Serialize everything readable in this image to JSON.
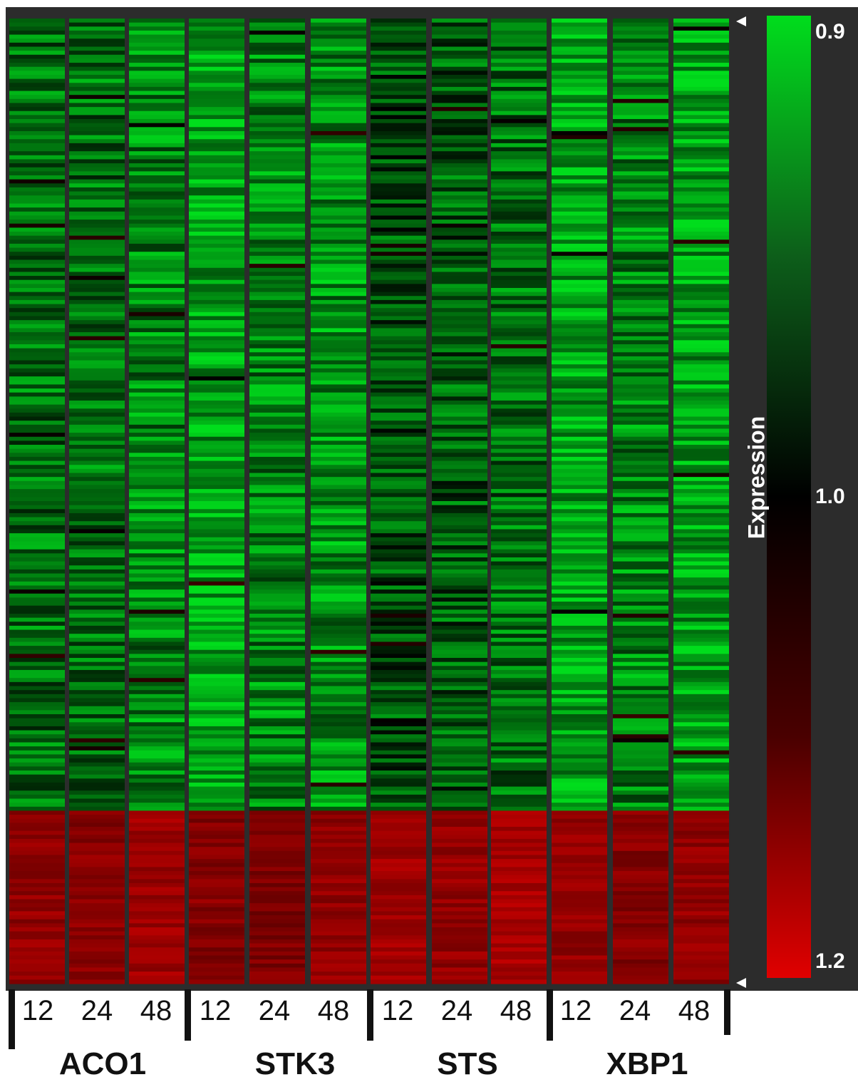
{
  "chart_data": {
    "type": "heatmap",
    "title": "",
    "groups": [
      {
        "name": "ACO1",
        "timepoints": [
          "12",
          "24",
          "48"
        ]
      },
      {
        "name": "STK3",
        "timepoints": [
          "12",
          "24",
          "48"
        ]
      },
      {
        "name": "STS",
        "timepoints": [
          "12",
          "24",
          "48"
        ]
      },
      {
        "name": "XBP1",
        "timepoints": [
          "12",
          "24",
          "48"
        ]
      }
    ],
    "columns": [
      "ACO1 12",
      "ACO1 24",
      "ACO1 48",
      "STK3 12",
      "STK3 24",
      "STK3 48",
      "STS 12",
      "STS 24",
      "STS 48",
      "XBP1 12",
      "XBP1 24",
      "XBP1 48"
    ],
    "gene_clusters": [
      {
        "position": "top",
        "row_fraction": 0.82,
        "column_means": [
          0.95,
          0.95,
          0.94,
          0.925,
          0.94,
          0.935,
          0.965,
          0.96,
          0.95,
          0.925,
          0.94,
          0.925
        ]
      },
      {
        "position": "bottom",
        "row_fraction": 0.18,
        "column_means": [
          1.13,
          1.12,
          1.14,
          1.12,
          1.11,
          1.13,
          1.14,
          1.13,
          1.15,
          1.13,
          1.12,
          1.13
        ]
      }
    ],
    "colorbar": {
      "title": "Expression",
      "ticks": [
        "0.9",
        "1.0",
        "1.2"
      ],
      "range": [
        0.9,
        1.2
      ],
      "colors": {
        "low": "#00dd1c",
        "mid": "#000000",
        "high": "#e00000"
      }
    },
    "grid": false,
    "legend_position": "right"
  }
}
